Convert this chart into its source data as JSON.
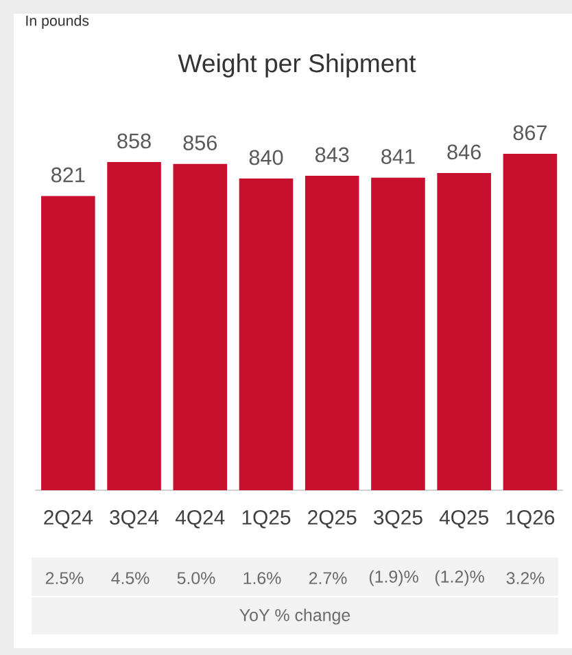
{
  "chart_data": {
    "type": "bar",
    "title": "Weight per Shipment",
    "categories": [
      "2Q24",
      "3Q24",
      "4Q24",
      "1Q25",
      "2Q25",
      "3Q25",
      "4Q25",
      "1Q26"
    ],
    "values": [
      821,
      858,
      856,
      840,
      843,
      841,
      846,
      867
    ],
    "color": "#c8102e",
    "ylim": [
      500,
      867
    ],
    "data_labels": true,
    "annotations": [
      "In pounds",
      "2.5%",
      "4.5%",
      "5.0%",
      "1.6%",
      "2.7%",
      "(1.9)%",
      "(1.2)%",
      "3.2%",
      "YoY % change"
    ]
  }
}
